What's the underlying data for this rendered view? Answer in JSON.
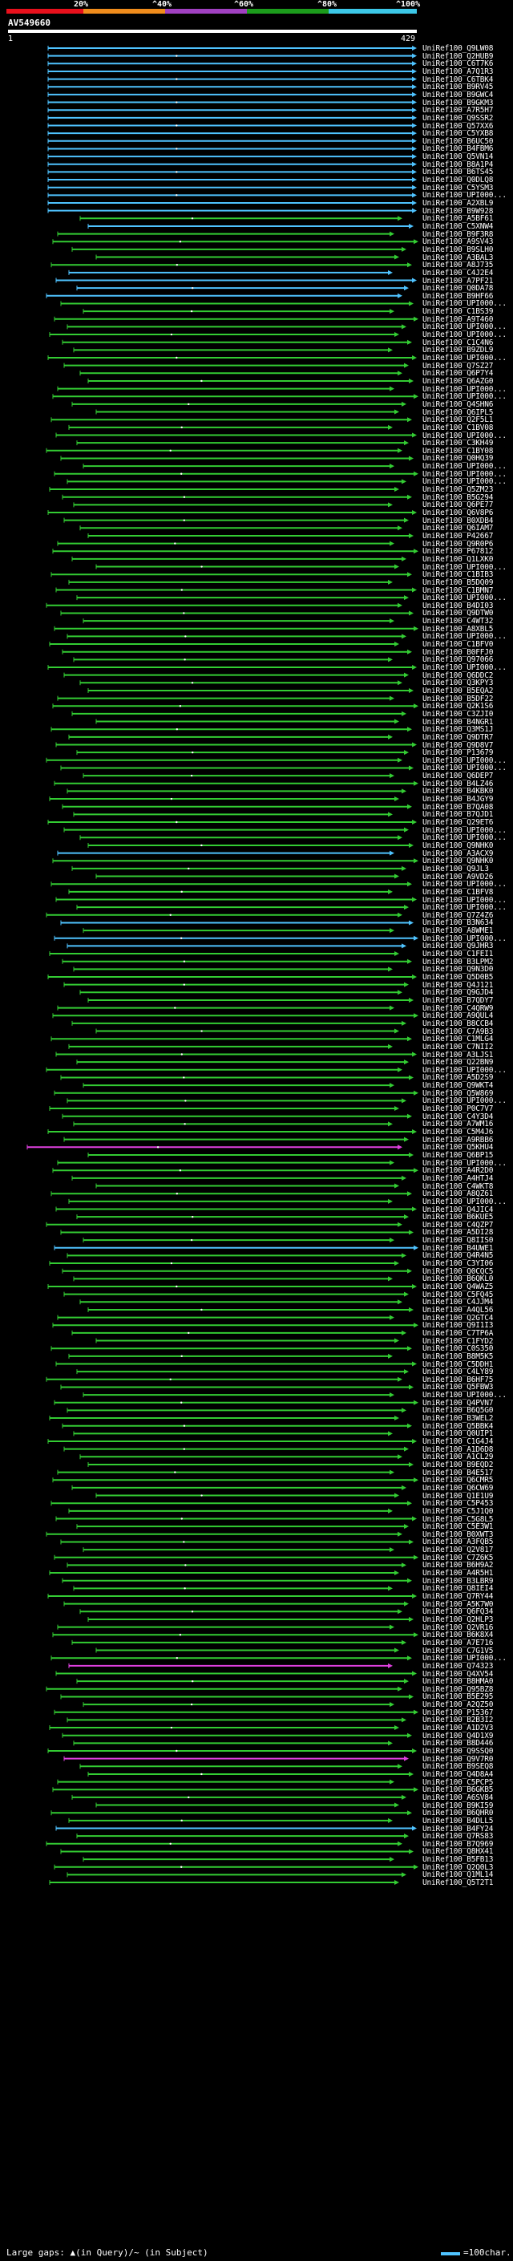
{
  "scale": {
    "ticks": [
      "20%",
      "^40%",
      "^60%",
      "^80%",
      "^100%"
    ],
    "colors": [
      "#e8101c",
      "#f08c1c",
      "#a040c0",
      "#1c9c1c",
      "#3cc8e8"
    ]
  },
  "query": {
    "id": "AV549660",
    "start": "1",
    "end": "429"
  },
  "hit_colors": {
    "green": "#33cc33",
    "cyan": "#4fc3ff",
    "magenta": "#e040e0"
  },
  "hits": [
    {
      "label": "UniRef100_Q9LW08",
      "color": "cyan"
    },
    {
      "label": "UniRef100_Q2HUB9",
      "color": "cyan"
    },
    {
      "label": "UniRef100_C6T7K6",
      "color": "cyan"
    },
    {
      "label": "UniRef100_A7Q1R3",
      "color": "cyan"
    },
    {
      "label": "UniRef100_C6TBK4",
      "color": "cyan"
    },
    {
      "label": "UniRef100_B9RV45",
      "color": "cyan"
    },
    {
      "label": "UniRef100_B9GWC4",
      "color": "cyan"
    },
    {
      "label": "UniRef100_B9GKM3",
      "color": "cyan"
    },
    {
      "label": "UniRef100_A7R5H7",
      "color": "cyan"
    },
    {
      "label": "UniRef100_Q9SSR2",
      "color": "cyan"
    },
    {
      "label": "UniRef100_Q57XX6",
      "color": "cyan"
    },
    {
      "label": "UniRef100_C5YXB8",
      "color": "cyan"
    },
    {
      "label": "UniRef100_B6UC50",
      "color": "cyan"
    },
    {
      "label": "UniRef100_B4FBM6",
      "color": "cyan"
    },
    {
      "label": "UniRef100_Q5VN14",
      "color": "cyan"
    },
    {
      "label": "UniRef100_B8A1P4",
      "color": "cyan"
    },
    {
      "label": "UniRef100_B6TS45",
      "color": "cyan"
    },
    {
      "label": "UniRef100_Q0DLQ8",
      "color": "cyan"
    },
    {
      "label": "UniRef100_C5YSM3",
      "color": "cyan"
    },
    {
      "label": "UniRef100_UPI000...",
      "color": "cyan"
    },
    {
      "label": "UniRef100_A2XBL9",
      "color": "cyan"
    },
    {
      "label": "UniRef100_B9W928",
      "color": "cyan"
    },
    {
      "label": "UniRef100_A5BF61",
      "color": "green"
    },
    {
      "label": "UniRef100_C5XNW4",
      "color": "cyan"
    },
    {
      "label": "UniRef100_B9F3R8",
      "color": "green"
    },
    {
      "label": "UniRef100_A9SV43",
      "color": "green"
    },
    {
      "label": "UniRef100_B9SLH0",
      "color": "green"
    },
    {
      "label": "UniRef100_A3BAL3",
      "color": "green"
    },
    {
      "label": "UniRef100_A8J735",
      "color": "green"
    },
    {
      "label": "UniRef100_C4J2E4",
      "color": "cyan"
    },
    {
      "label": "UniRef100_A7PF21",
      "color": "cyan"
    },
    {
      "label": "UniRef100_Q0DA78",
      "color": "cyan"
    },
    {
      "label": "UniRef100_B9HF66",
      "color": "cyan"
    },
    {
      "label": "UniRef100_UPI000...",
      "color": "green"
    },
    {
      "label": "UniRef100_C1BS39",
      "color": "green"
    },
    {
      "label": "UniRef100_A9T460",
      "color": "green"
    },
    {
      "label": "UniRef100_UPI000...",
      "color": "green"
    },
    {
      "label": "UniRef100_UPI000...",
      "color": "green"
    },
    {
      "label": "UniRef100_C1C4N6",
      "color": "green"
    },
    {
      "label": "UniRef100_B9ZDL9",
      "color": "green"
    },
    {
      "label": "UniRef100_UPI000...",
      "color": "green"
    },
    {
      "label": "UniRef100_Q7SZ27",
      "color": "green"
    },
    {
      "label": "UniRef100_Q6P7Y4",
      "color": "green"
    },
    {
      "label": "UniRef100_Q6AZG0",
      "color": "green"
    },
    {
      "label": "UniRef100_UPI000...",
      "color": "green"
    },
    {
      "label": "UniRef100_UPI000...",
      "color": "green"
    },
    {
      "label": "UniRef100_Q4SHN6",
      "color": "green"
    },
    {
      "label": "UniRef100_Q6IPL5",
      "color": "green"
    },
    {
      "label": "UniRef100_Q2F5L1",
      "color": "green"
    },
    {
      "label": "UniRef100_C1BV08",
      "color": "green"
    },
    {
      "label": "UniRef100_UPI000...",
      "color": "green"
    },
    {
      "label": "UniRef100_C3KH49",
      "color": "green"
    },
    {
      "label": "UniRef100_C1BY08",
      "color": "green"
    },
    {
      "label": "UniRef100_Q0HQ39",
      "color": "green"
    },
    {
      "label": "UniRef100_UPI000...",
      "color": "green"
    },
    {
      "label": "UniRef100_UPI000...",
      "color": "green"
    },
    {
      "label": "UniRef100_UPI000...",
      "color": "green"
    },
    {
      "label": "UniRef100_Q5ZM23",
      "color": "green"
    },
    {
      "label": "UniRef100_B5G294",
      "color": "green"
    },
    {
      "label": "UniRef100_Q6PE77",
      "color": "green"
    },
    {
      "label": "UniRef100_Q6V8P6",
      "color": "green"
    },
    {
      "label": "UniRef100_B0XDB4",
      "color": "green"
    },
    {
      "label": "UniRef100_Q6IAM7",
      "color": "green"
    },
    {
      "label": "UniRef100_P42667",
      "color": "green"
    },
    {
      "label": "UniRef100_Q9R0P6",
      "color": "green"
    },
    {
      "label": "UniRef100_P67812",
      "color": "green"
    },
    {
      "label": "UniRef100_Q1LXK0",
      "color": "green"
    },
    {
      "label": "UniRef100_UPI000...",
      "color": "green"
    },
    {
      "label": "UniRef100_C1BIB3",
      "color": "green"
    },
    {
      "label": "UniRef100_B5DQ09",
      "color": "green"
    },
    {
      "label": "UniRef100_C1BMN7",
      "color": "green"
    },
    {
      "label": "UniRef100_UPI000...",
      "color": "green"
    },
    {
      "label": "UniRef100_B4DI03",
      "color": "green"
    },
    {
      "label": "UniRef100_Q9DTW0",
      "color": "green"
    },
    {
      "label": "UniRef100_C4WT32",
      "color": "green"
    },
    {
      "label": "UniRef100_A8XBL5",
      "color": "green"
    },
    {
      "label": "UniRef100_UPI000...",
      "color": "green"
    },
    {
      "label": "UniRef100_C1BFV0",
      "color": "green"
    },
    {
      "label": "UniRef100_B0FFJ0",
      "color": "green"
    },
    {
      "label": "UniRef100_Q97066",
      "color": "green"
    },
    {
      "label": "UniRef100_UPI000...",
      "color": "green"
    },
    {
      "label": "UniRef100_Q6DDC2",
      "color": "green"
    },
    {
      "label": "UniRef100_Q3KPY3",
      "color": "green"
    },
    {
      "label": "UniRef100_B5EQA2",
      "color": "green"
    },
    {
      "label": "UniRef100_B5DF22",
      "color": "green"
    },
    {
      "label": "UniRef100_Q2K1S6",
      "color": "green"
    },
    {
      "label": "UniRef100_C3ZJI0",
      "color": "green"
    },
    {
      "label": "UniRef100_B4NGR1",
      "color": "green"
    },
    {
      "label": "UniRef100_Q3MS1J",
      "color": "green"
    },
    {
      "label": "UniRef100_Q9DTR7",
      "color": "green"
    },
    {
      "label": "UniRef100_Q9D8V7",
      "color": "green"
    },
    {
      "label": "UniRef100_P13679",
      "color": "green"
    },
    {
      "label": "UniRef100_UPI000...",
      "color": "green"
    },
    {
      "label": "UniRef100_UPI000...",
      "color": "green"
    },
    {
      "label": "UniRef100_Q6DEP7",
      "color": "green"
    },
    {
      "label": "UniRef100_B4LZ46",
      "color": "green"
    },
    {
      "label": "UniRef100_B4KBK0",
      "color": "green"
    },
    {
      "label": "UniRef100_B4JGY9",
      "color": "green"
    },
    {
      "label": "UniRef100_B7QA08",
      "color": "green"
    },
    {
      "label": "UniRef100_B7QJD1",
      "color": "green"
    },
    {
      "label": "UniRef100_Q29ET6",
      "color": "green"
    },
    {
      "label": "UniRef100_UPI000...",
      "color": "green"
    },
    {
      "label": "UniRef100_UPI000...",
      "color": "green"
    },
    {
      "label": "UniRef100_Q9NHK0",
      "color": "green"
    },
    {
      "label": "UniRef100_A3ACX9",
      "color": "cyan"
    },
    {
      "label": "UniRef100_Q9NHK0",
      "color": "green"
    },
    {
      "label": "UniRef100_Q9JL3",
      "color": "green"
    },
    {
      "label": "UniRef100_A9VD26",
      "color": "green"
    },
    {
      "label": "UniRef100_UPI000...",
      "color": "green"
    },
    {
      "label": "UniRef100_C1BFV8",
      "color": "green"
    },
    {
      "label": "UniRef100_UPI000...",
      "color": "green"
    },
    {
      "label": "UniRef100_UPI000...",
      "color": "green"
    },
    {
      "label": "UniRef100_Q7Z4Z6",
      "color": "green"
    },
    {
      "label": "UniRef100_B3N634",
      "color": "cyan"
    },
    {
      "label": "UniRef100_A8WME1",
      "color": "green"
    },
    {
      "label": "UniRef100_UPI000...",
      "color": "cyan"
    },
    {
      "label": "UniRef100_Q9JHR3",
      "color": "cyan"
    },
    {
      "label": "UniRef100_C1FEI1",
      "color": "green"
    },
    {
      "label": "UniRef100_B3LPM2",
      "color": "green"
    },
    {
      "label": "UniRef100_Q9N3D0",
      "color": "green"
    },
    {
      "label": "UniRef100_Q5D0B5",
      "color": "green"
    },
    {
      "label": "UniRef100_Q4J121",
      "color": "green"
    },
    {
      "label": "UniRef100_Q9GJD4",
      "color": "green"
    },
    {
      "label": "UniRef100_B7QDY7",
      "color": "green"
    },
    {
      "label": "UniRef100_C4QRW9",
      "color": "green"
    },
    {
      "label": "UniRef100_A9QUL4",
      "color": "green"
    },
    {
      "label": "UniRef100_B8CCB4",
      "color": "green"
    },
    {
      "label": "UniRef100_C7A9B3",
      "color": "green"
    },
    {
      "label": "UniRef100_C1MLG4",
      "color": "green"
    },
    {
      "label": "UniRef100_C7NII2",
      "color": "green"
    },
    {
      "label": "UniRef100_A3LJS1",
      "color": "green"
    },
    {
      "label": "UniRef100_Q22BN9",
      "color": "green"
    },
    {
      "label": "UniRef100_UPI000...",
      "color": "green"
    },
    {
      "label": "UniRef100_A5D2S9",
      "color": "green"
    },
    {
      "label": "UniRef100_Q9WKT4",
      "color": "green"
    },
    {
      "label": "UniRef100_Q5W869",
      "color": "green"
    },
    {
      "label": "UniRef100_UPI000...",
      "color": "green"
    },
    {
      "label": "UniRef100_P0C7V7",
      "color": "green"
    },
    {
      "label": "UniRef100_C4Y3D4",
      "color": "green"
    },
    {
      "label": "UniRef100_A7WM16",
      "color": "green"
    },
    {
      "label": "UniRef100_C5M4J6",
      "color": "green"
    },
    {
      "label": "UniRef100_A9RBB6",
      "color": "green"
    },
    {
      "label": "UniRef100_Q5KHU4",
      "color": "magenta"
    },
    {
      "label": "UniRef100_Q6BP15",
      "color": "green"
    },
    {
      "label": "UniRef100_UPI000...",
      "color": "green"
    },
    {
      "label": "UniRef100_A4R2D0",
      "color": "green"
    },
    {
      "label": "UniRef100_A4HTJ4",
      "color": "green"
    },
    {
      "label": "UniRef100_C4WKT8",
      "color": "green"
    },
    {
      "label": "UniRef100_A8QZ61",
      "color": "green"
    },
    {
      "label": "UniRef100_UPI000...",
      "color": "green"
    },
    {
      "label": "UniRef100_Q4JIC4",
      "color": "green"
    },
    {
      "label": "UniRef100_B6KUE5",
      "color": "green"
    },
    {
      "label": "UniRef100_C4QZP7",
      "color": "green"
    },
    {
      "label": "UniRef100_A5DI28",
      "color": "green"
    },
    {
      "label": "UniRef100_Q8IIS0",
      "color": "green"
    },
    {
      "label": "UniRef100_B4UWE1",
      "color": "cyan"
    },
    {
      "label": "UniRef100_Q4R4N5",
      "color": "green"
    },
    {
      "label": "UniRef100_C3YI06",
      "color": "green"
    },
    {
      "label": "UniRef100_Q0CQC5",
      "color": "green"
    },
    {
      "label": "UniRef100_B6QKL0",
      "color": "green"
    },
    {
      "label": "UniRef100_Q4WAZ5",
      "color": "green"
    },
    {
      "label": "UniRef100_C5FQ45",
      "color": "green"
    },
    {
      "label": "UniRef100_C4JJM4",
      "color": "green"
    },
    {
      "label": "UniRef100_A4QL56",
      "color": "green"
    },
    {
      "label": "UniRef100_Q2GTC4",
      "color": "green"
    },
    {
      "label": "UniRef100_Q9I1I3",
      "color": "green"
    },
    {
      "label": "UniRef100_C7TP6A",
      "color": "green"
    },
    {
      "label": "UniRef100_C1FYD2",
      "color": "green"
    },
    {
      "label": "UniRef100_C0S350",
      "color": "green"
    },
    {
      "label": "UniRef100_B8M5K5",
      "color": "green"
    },
    {
      "label": "UniRef100_C5DDH1",
      "color": "green"
    },
    {
      "label": "UniRef100_C4LY89",
      "color": "green"
    },
    {
      "label": "UniRef100_B6HF75",
      "color": "green"
    },
    {
      "label": "UniRef100_Q5FBW3",
      "color": "green"
    },
    {
      "label": "UniRef100_UPI000...",
      "color": "green"
    },
    {
      "label": "UniRef100_Q4PVN7",
      "color": "green"
    },
    {
      "label": "UniRef100_B6Q5G0",
      "color": "green"
    },
    {
      "label": "UniRef100_B3WEL2",
      "color": "green"
    },
    {
      "label": "UniRef100_Q5BBK4",
      "color": "green"
    },
    {
      "label": "UniRef100_Q0UIP1",
      "color": "green"
    },
    {
      "label": "UniRef100_C1G4J4",
      "color": "green"
    },
    {
      "label": "UniRef100_A1D6D8",
      "color": "green"
    },
    {
      "label": "UniRef100_A1CL29",
      "color": "green"
    },
    {
      "label": "UniRef100_B9EQD2",
      "color": "green"
    },
    {
      "label": "UniRef100_B4E517",
      "color": "green"
    },
    {
      "label": "UniRef100_Q6CMR5",
      "color": "green"
    },
    {
      "label": "UniRef100_Q6CW69",
      "color": "green"
    },
    {
      "label": "UniRef100_Q1E1U9",
      "color": "green"
    },
    {
      "label": "UniRef100_C5P453",
      "color": "green"
    },
    {
      "label": "UniRef100_C5J1Q0",
      "color": "green"
    },
    {
      "label": "UniRef100_C5G8L5",
      "color": "green"
    },
    {
      "label": "UniRef100_C5E3W1",
      "color": "green"
    },
    {
      "label": "UniRef100_B0XWT3",
      "color": "green"
    },
    {
      "label": "UniRef100_A3FQB5",
      "color": "green"
    },
    {
      "label": "UniRef100_Q2V817",
      "color": "green"
    },
    {
      "label": "UniRef100_C7Z6K5",
      "color": "green"
    },
    {
      "label": "UniRef100_B6H9A2",
      "color": "green"
    },
    {
      "label": "UniRef100_A4R5H1",
      "color": "green"
    },
    {
      "label": "UniRef100_B3LBR9",
      "color": "green"
    },
    {
      "label": "UniRef100_Q8IEI4",
      "color": "green"
    },
    {
      "label": "UniRef100_Q7RY44",
      "color": "green"
    },
    {
      "label": "UniRef100_A5K7W0",
      "color": "green"
    },
    {
      "label": "UniRef100_Q6FQ34",
      "color": "green"
    },
    {
      "label": "UniRef100_Q2HLP3",
      "color": "green"
    },
    {
      "label": "UniRef100_Q2VR16",
      "color": "green"
    },
    {
      "label": "UniRef100_B6K8X4",
      "color": "green"
    },
    {
      "label": "UniRef100_A7E716",
      "color": "green"
    },
    {
      "label": "UniRef100_C7G1V5",
      "color": "green"
    },
    {
      "label": "UniRef100_UPI000...",
      "color": "green"
    },
    {
      "label": "UniRef100_Q74323",
      "color": "magenta"
    },
    {
      "label": "UniRef100_Q4XV54",
      "color": "green"
    },
    {
      "label": "UniRef100_B8HMA0",
      "color": "green"
    },
    {
      "label": "UniRef100_Q95BZ8",
      "color": "green"
    },
    {
      "label": "UniRef100_B5E295",
      "color": "green"
    },
    {
      "label": "UniRef100_A2QZ50",
      "color": "green"
    },
    {
      "label": "UniRef100_P15367",
      "color": "green"
    },
    {
      "label": "UniRef100_B2B3I2",
      "color": "green"
    },
    {
      "label": "UniRef100_A1D2V3",
      "color": "green"
    },
    {
      "label": "UniRef100_Q4D1X9",
      "color": "green"
    },
    {
      "label": "UniRef100_B8D446",
      "color": "green"
    },
    {
      "label": "UniRef100_Q9SSQ0",
      "color": "green"
    },
    {
      "label": "UniRef100_Q9V7R0",
      "color": "magenta"
    },
    {
      "label": "UniRef100_B9SEQ8",
      "color": "green"
    },
    {
      "label": "UniRef100_Q4D8A4",
      "color": "green"
    },
    {
      "label": "UniRef100_C5PCP5",
      "color": "green"
    },
    {
      "label": "UniRef100_B6GKB5",
      "color": "green"
    },
    {
      "label": "UniRef100_A6SV84",
      "color": "green"
    },
    {
      "label": "UniRef100_B9KI59",
      "color": "green"
    },
    {
      "label": "UniRef100_B6QHR0",
      "color": "green"
    },
    {
      "label": "UniRef100_B4DLL5",
      "color": "green"
    },
    {
      "label": "UniRef100_B4FY24",
      "color": "cyan"
    },
    {
      "label": "UniRef100_Q7RS83",
      "color": "green"
    },
    {
      "label": "UniRef100_B7Q969",
      "color": "green"
    },
    {
      "label": "UniRef100_Q8HX41",
      "color": "green"
    },
    {
      "label": "UniRef100_B5FB13",
      "color": "green"
    },
    {
      "label": "UniRef100_Q2Q0L3",
      "color": "green"
    },
    {
      "label": "UniRef100_Q1ML14",
      "color": "green"
    },
    {
      "label": "UniRef100_Q5T2T1",
      "color": "green"
    }
  ],
  "footer": {
    "gaps_legend": "Large gaps: ▲(in Query)/~ (in Subject)",
    "scale_legend": "=100char."
  }
}
